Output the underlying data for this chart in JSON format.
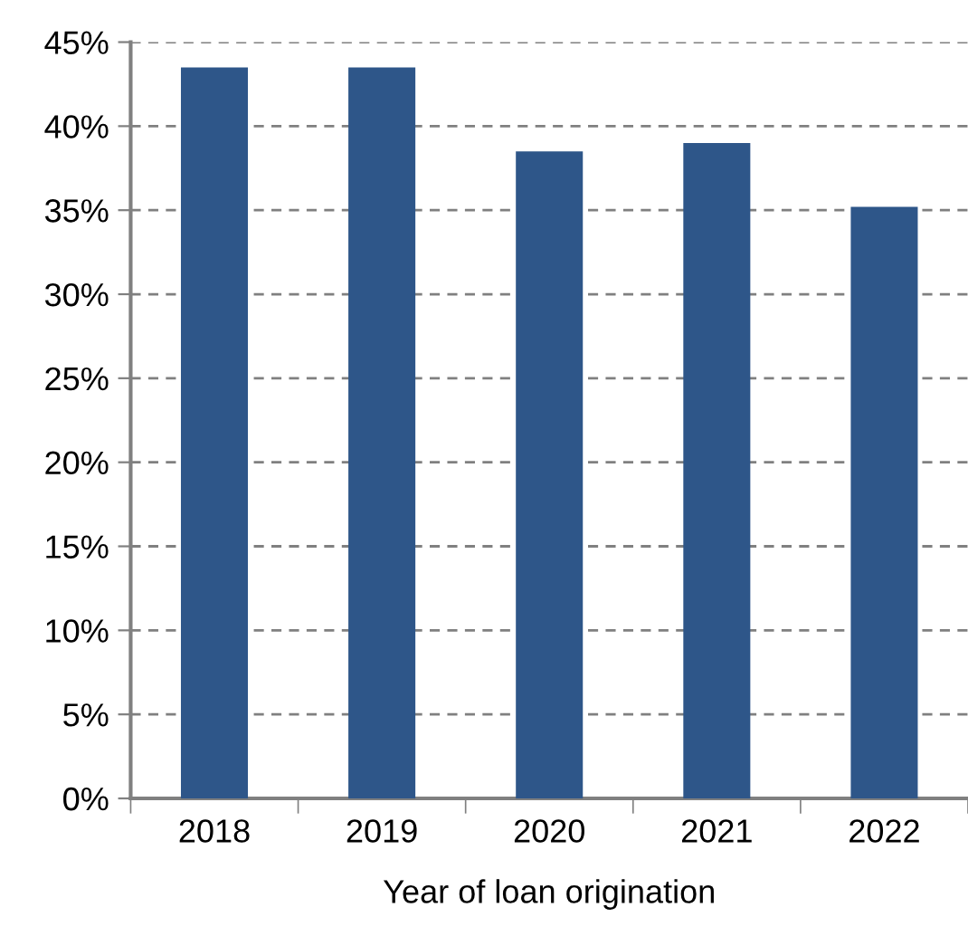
{
  "chart_data": {
    "type": "bar",
    "xlabel": "Year of loan origination",
    "categories": [
      "2018",
      "2019",
      "2020",
      "2021",
      "2022"
    ],
    "values": [
      43.5,
      43.5,
      38.5,
      39.0,
      35.2
    ],
    "color": "#2e5689",
    "ylim": [
      0,
      45
    ],
    "yticks": [
      {
        "value": 0,
        "label": "0%"
      },
      {
        "value": 5,
        "label": "5%"
      },
      {
        "value": 10,
        "label": "10%"
      },
      {
        "value": 15,
        "label": "15%"
      },
      {
        "value": 20,
        "label": "20%"
      },
      {
        "value": 25,
        "label": "25%"
      },
      {
        "value": 30,
        "label": "30%"
      },
      {
        "value": 35,
        "label": "35%"
      },
      {
        "value": 40,
        "label": "40%"
      },
      {
        "value": 45,
        "label": "45%"
      }
    ],
    "grid": "y",
    "line_style": "dashed"
  }
}
